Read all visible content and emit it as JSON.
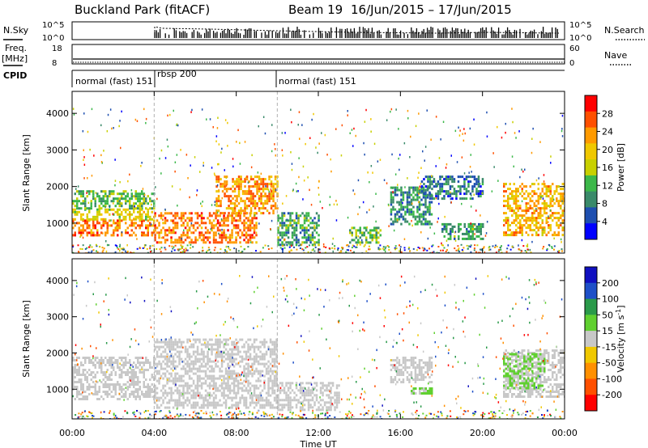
{
  "header": {
    "title": "Buckland Park (fitACF)",
    "beam": "Beam 19",
    "date_range": "16/Jun/2015 – 17/Jun/2015"
  },
  "top_panels": {
    "nsky_label": "N.Sky",
    "nsky_ticks": [
      "10^5",
      "10^0"
    ],
    "nsearch_label": "N.Search",
    "nsearch_ticks": [
      "10^5",
      "10^0"
    ],
    "freq_label": "Freq.",
    "freq_unit": "[MHz]",
    "freq_ticks": [
      "18",
      "8"
    ],
    "nave_label": "Nave",
    "nave_ticks": [
      "60",
      "0"
    ],
    "cpid_label": "CPID",
    "cpid_segments": [
      {
        "label": "normal (fast) 151",
        "start": 0,
        "end": 4
      },
      {
        "label": "rbsp 200",
        "start": 4,
        "end": 10
      },
      {
        "label": "normal (fast) 151",
        "start": 10,
        "end": 24
      }
    ]
  },
  "axes": {
    "x_ticks": [
      "00:00",
      "04:00",
      "08:00",
      "12:00",
      "16:00",
      "20:00",
      "00:00"
    ],
    "xlabel": "Time UT",
    "ylabel": "Slant Range [km]",
    "y_ticks": [
      "1000",
      "2000",
      "3000",
      "4000"
    ]
  },
  "colorbars": {
    "power_label": "Power [dB]",
    "power_ticks": [
      "28",
      "24",
      "20",
      "16",
      "12",
      "8",
      "4"
    ],
    "power_colors": [
      "#ff0000",
      "#ff5000",
      "#ff9a00",
      "#f0c800",
      "#c8d000",
      "#3cb84a",
      "#3a8a6a",
      "#1e4fb0",
      "#0000ff"
    ],
    "velocity_label": "Velocity [m s",
    "velocity_label_sup": "-1",
    "velocity_label_end": "]",
    "velocity_ticks": [
      "200",
      "100",
      "50",
      "15",
      "-15",
      "-50",
      "-100",
      "-200"
    ],
    "velocity_colors": [
      "#1010c0",
      "#1e50c8",
      "#2a9a4a",
      "#60d030",
      "#c8c8c8",
      "#f0c800",
      "#ff9000",
      "#ff5000",
      "#ff0000"
    ]
  },
  "chart_data": [
    {
      "type": "heatmap",
      "title": "Power",
      "xlabel": "Time UT",
      "ylabel": "Slant Range [km]",
      "xlim": [
        0,
        24
      ],
      "ylim": [
        180,
        4600
      ],
      "colorbar": {
        "label": "Power [dB]",
        "range": [
          0,
          32
        ]
      },
      "regions": [
        {
          "t": [
            0,
            4
          ],
          "range": [
            700,
            1100
          ],
          "value": 26
        },
        {
          "t": [
            0,
            4
          ],
          "range": [
            1100,
            1400
          ],
          "value": 18
        },
        {
          "t": [
            0,
            4
          ],
          "range": [
            1400,
            1900
          ],
          "value": 12
        },
        {
          "t": [
            4,
            9
          ],
          "range": [
            500,
            1300
          ],
          "value": 26
        },
        {
          "t": [
            7,
            10
          ],
          "range": [
            1300,
            2300
          ],
          "value": 24
        },
        {
          "t": [
            10,
            12
          ],
          "range": [
            400,
            1300
          ],
          "value": 10
        },
        {
          "t": [
            13.5,
            15
          ],
          "range": [
            500,
            900
          ],
          "value": 12
        },
        {
          "t": [
            15.5,
            17.5
          ],
          "range": [
            1000,
            2000
          ],
          "value": 8
        },
        {
          "t": [
            17,
            20
          ],
          "range": [
            1700,
            2300
          ],
          "value": 6
        },
        {
          "t": [
            18,
            20
          ],
          "range": [
            600,
            1000
          ],
          "value": 10
        },
        {
          "t": [
            21,
            24
          ],
          "range": [
            700,
            2100
          ],
          "value": 22
        }
      ]
    },
    {
      "type": "heatmap",
      "title": "Velocity",
      "xlabel": "Time UT",
      "ylabel": "Slant Range [km]",
      "xlim": [
        0,
        24
      ],
      "ylim": [
        180,
        4600
      ],
      "colorbar": {
        "label": "Velocity [m s-1]",
        "range": [
          -250,
          250
        ]
      },
      "regions": [
        {
          "t": [
            0,
            4
          ],
          "range": [
            700,
            1900
          ],
          "value": 0
        },
        {
          "t": [
            4,
            10
          ],
          "range": [
            500,
            2400
          ],
          "value": 0
        },
        {
          "t": [
            10,
            13
          ],
          "range": [
            400,
            1200
          ],
          "value": 0
        },
        {
          "t": [
            15.5,
            17.5
          ],
          "range": [
            1200,
            1900
          ],
          "value": 0
        },
        {
          "t": [
            16.5,
            17.5
          ],
          "range": [
            850,
            1050
          ],
          "value": 40
        },
        {
          "t": [
            21,
            24
          ],
          "range": [
            800,
            2100
          ],
          "value": 0
        },
        {
          "t": [
            21,
            23
          ],
          "range": [
            1000,
            2000
          ],
          "value": 40
        }
      ]
    }
  ]
}
